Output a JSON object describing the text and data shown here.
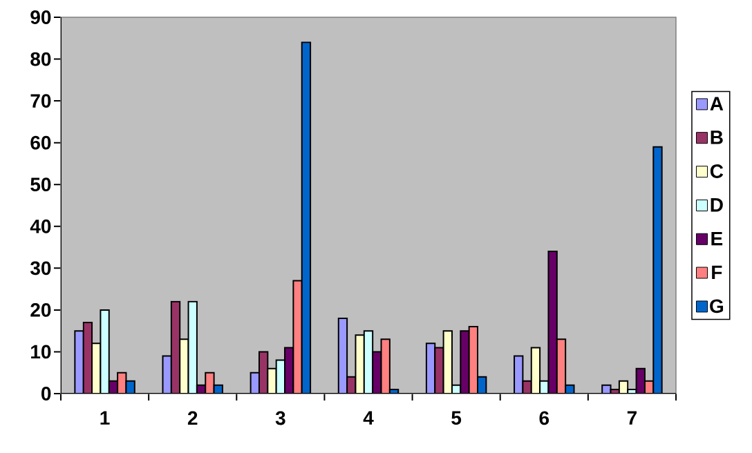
{
  "chart_data": {
    "type": "bar",
    "categories": [
      "1",
      "2",
      "3",
      "4",
      "5",
      "6",
      "7"
    ],
    "series": [
      {
        "name": "A",
        "color": "#9999ff",
        "values": [
          15,
          9,
          5,
          18,
          12,
          9,
          2
        ]
      },
      {
        "name": "B",
        "color": "#993366",
        "values": [
          17,
          22,
          10,
          4,
          11,
          3,
          1
        ]
      },
      {
        "name": "C",
        "color": "#ffffcc",
        "values": [
          12,
          13,
          6,
          14,
          15,
          11,
          3
        ]
      },
      {
        "name": "D",
        "color": "#ccffff",
        "values": [
          20,
          22,
          8,
          15,
          2,
          3,
          1
        ]
      },
      {
        "name": "E",
        "color": "#660066",
        "values": [
          3,
          2,
          11,
          10,
          15,
          34,
          6
        ]
      },
      {
        "name": "F",
        "color": "#ff8080",
        "values": [
          5,
          5,
          27,
          13,
          16,
          13,
          3
        ]
      },
      {
        "name": "G",
        "color": "#0066cc",
        "values": [
          3,
          2,
          84,
          1,
          4,
          2,
          59
        ]
      }
    ],
    "ylim": [
      0,
      90
    ],
    "yticks": [
      0,
      10,
      20,
      30,
      40,
      50,
      60,
      70,
      80,
      90
    ],
    "legend": "right"
  }
}
